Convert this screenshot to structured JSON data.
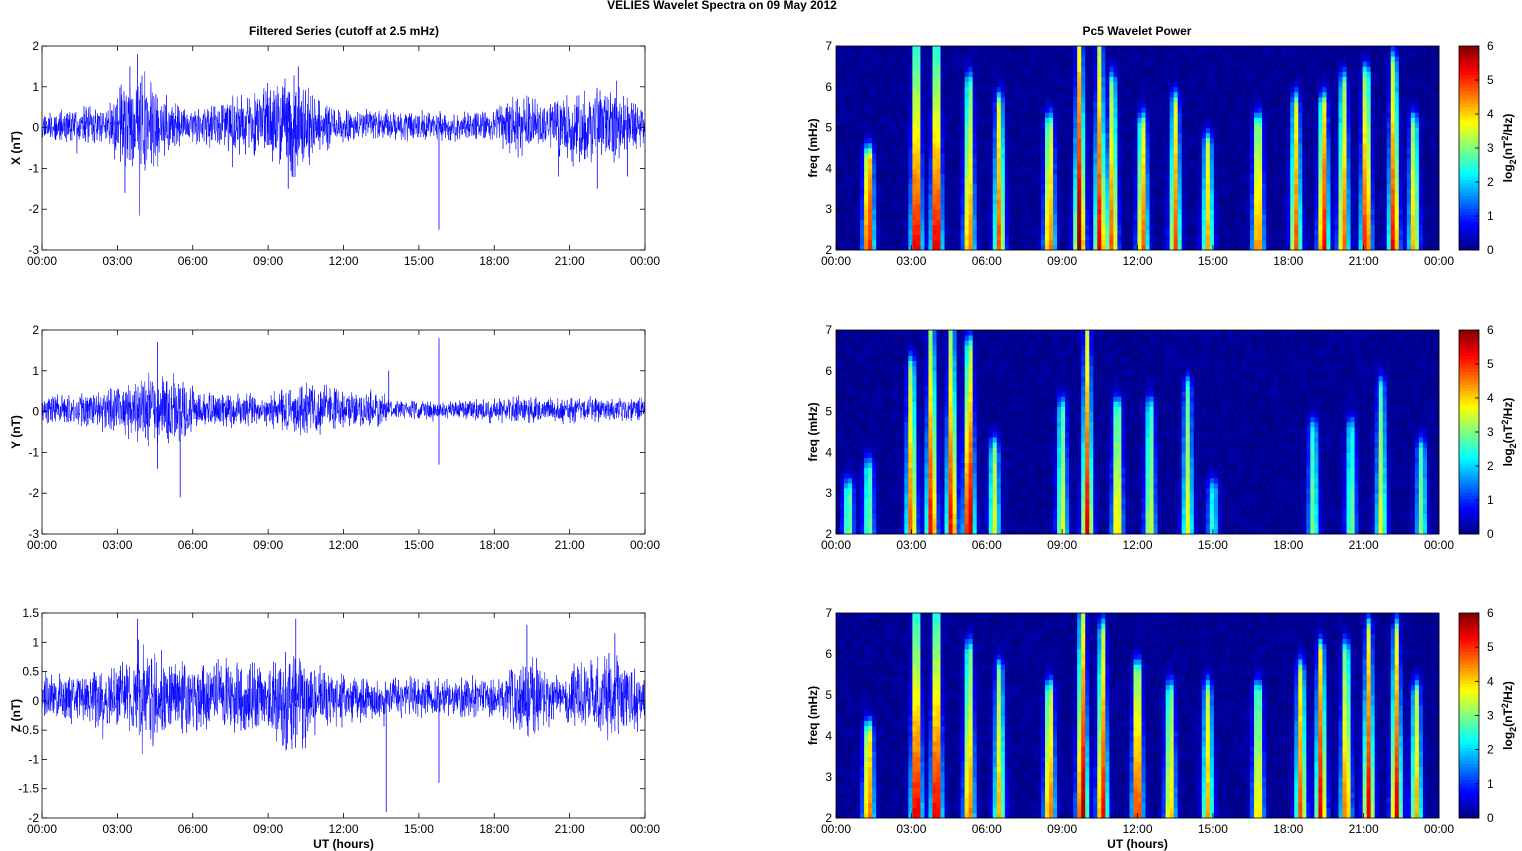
{
  "figure": {
    "title": "VELIES Wavelet Spectra on 09 May      2012",
    "left_title": "Filtered Series (cutoff at 2.5 mHz)",
    "right_title": "Pc5 Wavelet Power",
    "xlabel": "UT (hours)"
  },
  "colors": {
    "series_line": "#0000ff",
    "axes": "#000000",
    "colormap": "jet"
  },
  "chart_data": [
    {
      "type": "line",
      "ylabel": "X (nT)",
      "ylim": [
        -3,
        2
      ],
      "yticks": [
        -3,
        -2,
        -1,
        0,
        1,
        2
      ],
      "xlim": [
        0,
        24
      ],
      "xticks": [
        "00:00",
        "03:00",
        "06:00",
        "09:00",
        "12:00",
        "15:00",
        "18:00",
        "21:00",
        "00:00"
      ],
      "series": [
        {
          "seed": 11,
          "activity": [
            [
              0,
              0.35
            ],
            [
              2.5,
              0.45
            ],
            [
              3.2,
              1.0
            ],
            [
              4.2,
              1.2
            ],
            [
              5,
              0.6
            ],
            [
              6,
              0.4
            ],
            [
              9,
              0.9
            ],
            [
              10,
              1.2
            ],
            [
              11,
              0.6
            ],
            [
              12,
              0.4
            ],
            [
              15,
              0.35
            ],
            [
              18,
              0.35
            ],
            [
              19,
              0.8
            ],
            [
              20,
              0.5
            ],
            [
              21,
              0.9
            ],
            [
              23,
              0.8
            ],
            [
              24,
              0.4
            ]
          ],
          "spikes": [
            [
              3.3,
              -1.6
            ],
            [
              3.8,
              1.8
            ],
            [
              9.8,
              -1.5
            ],
            [
              10.2,
              1.5
            ],
            [
              15.8,
              -2.5
            ],
            [
              22.1,
              -1.5
            ],
            [
              23.3,
              -1.2
            ],
            [
              3.5,
              1.5
            ]
          ]
        }
      ]
    },
    {
      "type": "line",
      "ylabel": "Y (nT)",
      "ylim": [
        -3,
        2
      ],
      "yticks": [
        -3,
        -2,
        -1,
        0,
        1,
        2
      ],
      "xlim": [
        0,
        24
      ],
      "xticks": [
        "00:00",
        "03:00",
        "06:00",
        "09:00",
        "12:00",
        "15:00",
        "18:00",
        "21:00",
        "00:00"
      ],
      "series": [
        {
          "seed": 23,
          "activity": [
            [
              0,
              0.3
            ],
            [
              3,
              0.5
            ],
            [
              4,
              0.9
            ],
            [
              5.5,
              0.8
            ],
            [
              6.5,
              0.35
            ],
            [
              9.5,
              0.5
            ],
            [
              10.5,
              0.6
            ],
            [
              13.5,
              0.4
            ],
            [
              14,
              0.2
            ],
            [
              17,
              0.25
            ],
            [
              18,
              0.3
            ],
            [
              24,
              0.3
            ]
          ],
          "spikes": [
            [
              4.6,
              1.7
            ],
            [
              5.5,
              -2.1
            ],
            [
              4.6,
              -1.4
            ],
            [
              13.8,
              1.0
            ],
            [
              15.8,
              1.8
            ],
            [
              15.8,
              -1.3
            ]
          ]
        }
      ]
    },
    {
      "type": "line",
      "ylabel": "Z (nT)",
      "ylim": [
        -2,
        1.5
      ],
      "yticks": [
        -2,
        -1.5,
        -1,
        -0.5,
        0,
        0.5,
        1,
        1.5
      ],
      "xlim": [
        0,
        24
      ],
      "xticks": [
        "00:00",
        "03:00",
        "06:00",
        "09:00",
        "12:00",
        "15:00",
        "18:00",
        "21:00",
        "00:00"
      ],
      "xlabel": "UT (hours)",
      "series": [
        {
          "seed": 37,
          "activity": [
            [
              0,
              0.35
            ],
            [
              3,
              0.5
            ],
            [
              4,
              0.9
            ],
            [
              5,
              0.6
            ],
            [
              9,
              0.6
            ],
            [
              10,
              1.0
            ],
            [
              11,
              0.5
            ],
            [
              13,
              0.35
            ],
            [
              18,
              0.3
            ],
            [
              19.5,
              0.7
            ],
            [
              20.5,
              0.35
            ],
            [
              21.5,
              0.6
            ],
            [
              23,
              0.7
            ],
            [
              24,
              0.4
            ]
          ],
          "spikes": [
            [
              3.8,
              1.4
            ],
            [
              10.1,
              1.4
            ],
            [
              13.7,
              -1.9
            ],
            [
              15.8,
              -1.4
            ],
            [
              19.3,
              1.3
            ],
            [
              22.8,
              1.15
            ]
          ]
        }
      ]
    },
    {
      "type": "heatmap",
      "ylabel": "freq (mHz)",
      "ylim": [
        2,
        7
      ],
      "yticks": [
        2,
        3,
        4,
        5,
        6,
        7
      ],
      "xlim": [
        0,
        24
      ],
      "xticks": [
        "00:00",
        "03:00",
        "06:00",
        "09:00",
        "12:00",
        "15:00",
        "18:00",
        "21:00",
        "00:00"
      ],
      "clim": [
        0,
        6
      ],
      "cticks": [
        0,
        1,
        2,
        3,
        4,
        5,
        6
      ],
      "clabel": "log2(nT2/Hz)",
      "seed": 101,
      "bursts": [
        [
          1.3,
          4.2,
          0.9
        ],
        [
          3.2,
          7,
          1
        ],
        [
          4,
          7,
          1
        ],
        [
          5.3,
          6,
          0.8
        ],
        [
          6.5,
          5.5,
          0.8
        ],
        [
          8.5,
          5,
          0.8
        ],
        [
          9.7,
          7,
          1
        ],
        [
          10.5,
          7,
          0.9
        ],
        [
          11,
          6,
          0.8
        ],
        [
          12.2,
          5,
          0.8
        ],
        [
          13.5,
          5.5,
          0.8
        ],
        [
          14.8,
          4.5,
          0.7
        ],
        [
          16.8,
          5,
          0.8
        ],
        [
          18.3,
          5.5,
          0.8
        ],
        [
          19.4,
          5.5,
          0.9
        ],
        [
          20.2,
          6,
          0.8
        ],
        [
          21.1,
          6.2,
          0.9
        ],
        [
          22.2,
          6.5,
          0.9
        ],
        [
          23,
          5,
          0.7
        ]
      ]
    },
    {
      "type": "heatmap",
      "ylabel": "freq (mHz)",
      "ylim": [
        2,
        7
      ],
      "yticks": [
        2,
        3,
        4,
        5,
        6,
        7
      ],
      "xlim": [
        0,
        24
      ],
      "xticks": [
        "00:00",
        "03:00",
        "06:00",
        "09:00",
        "12:00",
        "15:00",
        "18:00",
        "21:00",
        "00:00"
      ],
      "clim": [
        0,
        6
      ],
      "cticks": [
        0,
        1,
        2,
        3,
        4,
        5,
        6
      ],
      "clabel": "log2(nT2/Hz)",
      "seed": 202,
      "bursts": [
        [
          0.5,
          3,
          0.5
        ],
        [
          1.3,
          3.5,
          0.5
        ],
        [
          3,
          6,
          0.8
        ],
        [
          3.8,
          7,
          0.9
        ],
        [
          4.6,
          7,
          0.9
        ],
        [
          5.3,
          6.5,
          1
        ],
        [
          6.3,
          4,
          0.6
        ],
        [
          9,
          5,
          0.6
        ],
        [
          10,
          7,
          0.9
        ],
        [
          11.2,
          5,
          0.7
        ],
        [
          12.5,
          5,
          0.6
        ],
        [
          14,
          5.5,
          0.6
        ],
        [
          15,
          3,
          0.4
        ],
        [
          19,
          4.5,
          0.5
        ],
        [
          20.5,
          4.5,
          0.5
        ],
        [
          21.7,
          5.5,
          0.6
        ],
        [
          23.3,
          4,
          0.5
        ]
      ]
    },
    {
      "type": "heatmap",
      "ylabel": "freq (mHz)",
      "ylim": [
        2,
        7
      ],
      "yticks": [
        2,
        3,
        4,
        5,
        6,
        7
      ],
      "xlim": [
        0,
        24
      ],
      "xticks": [
        "00:00",
        "03:00",
        "06:00",
        "09:00",
        "12:00",
        "15:00",
        "18:00",
        "21:00",
        "00:00"
      ],
      "xlabel": "UT (hours)",
      "clim": [
        0,
        6
      ],
      "cticks": [
        0,
        1,
        2,
        3,
        4,
        5,
        6
      ],
      "clabel": "log2(nT2/Hz)",
      "seed": 303,
      "bursts": [
        [
          1.3,
          4,
          0.8
        ],
        [
          3.2,
          7,
          1
        ],
        [
          4,
          7,
          1
        ],
        [
          5.3,
          6,
          0.8
        ],
        [
          6.5,
          5.5,
          0.7
        ],
        [
          8.5,
          5,
          0.8
        ],
        [
          9.8,
          7,
          1
        ],
        [
          10.6,
          6.5,
          0.9
        ],
        [
          12,
          5.5,
          0.9
        ],
        [
          13.3,
          5,
          0.7
        ],
        [
          14.8,
          5,
          0.7
        ],
        [
          16.8,
          5,
          0.7
        ],
        [
          18.5,
          5.5,
          0.8
        ],
        [
          19.3,
          6,
          0.9
        ],
        [
          20.3,
          6,
          0.8
        ],
        [
          21.2,
          6.5,
          0.9
        ],
        [
          22.3,
          6.5,
          0.9
        ],
        [
          23.1,
          5,
          0.7
        ]
      ]
    }
  ]
}
